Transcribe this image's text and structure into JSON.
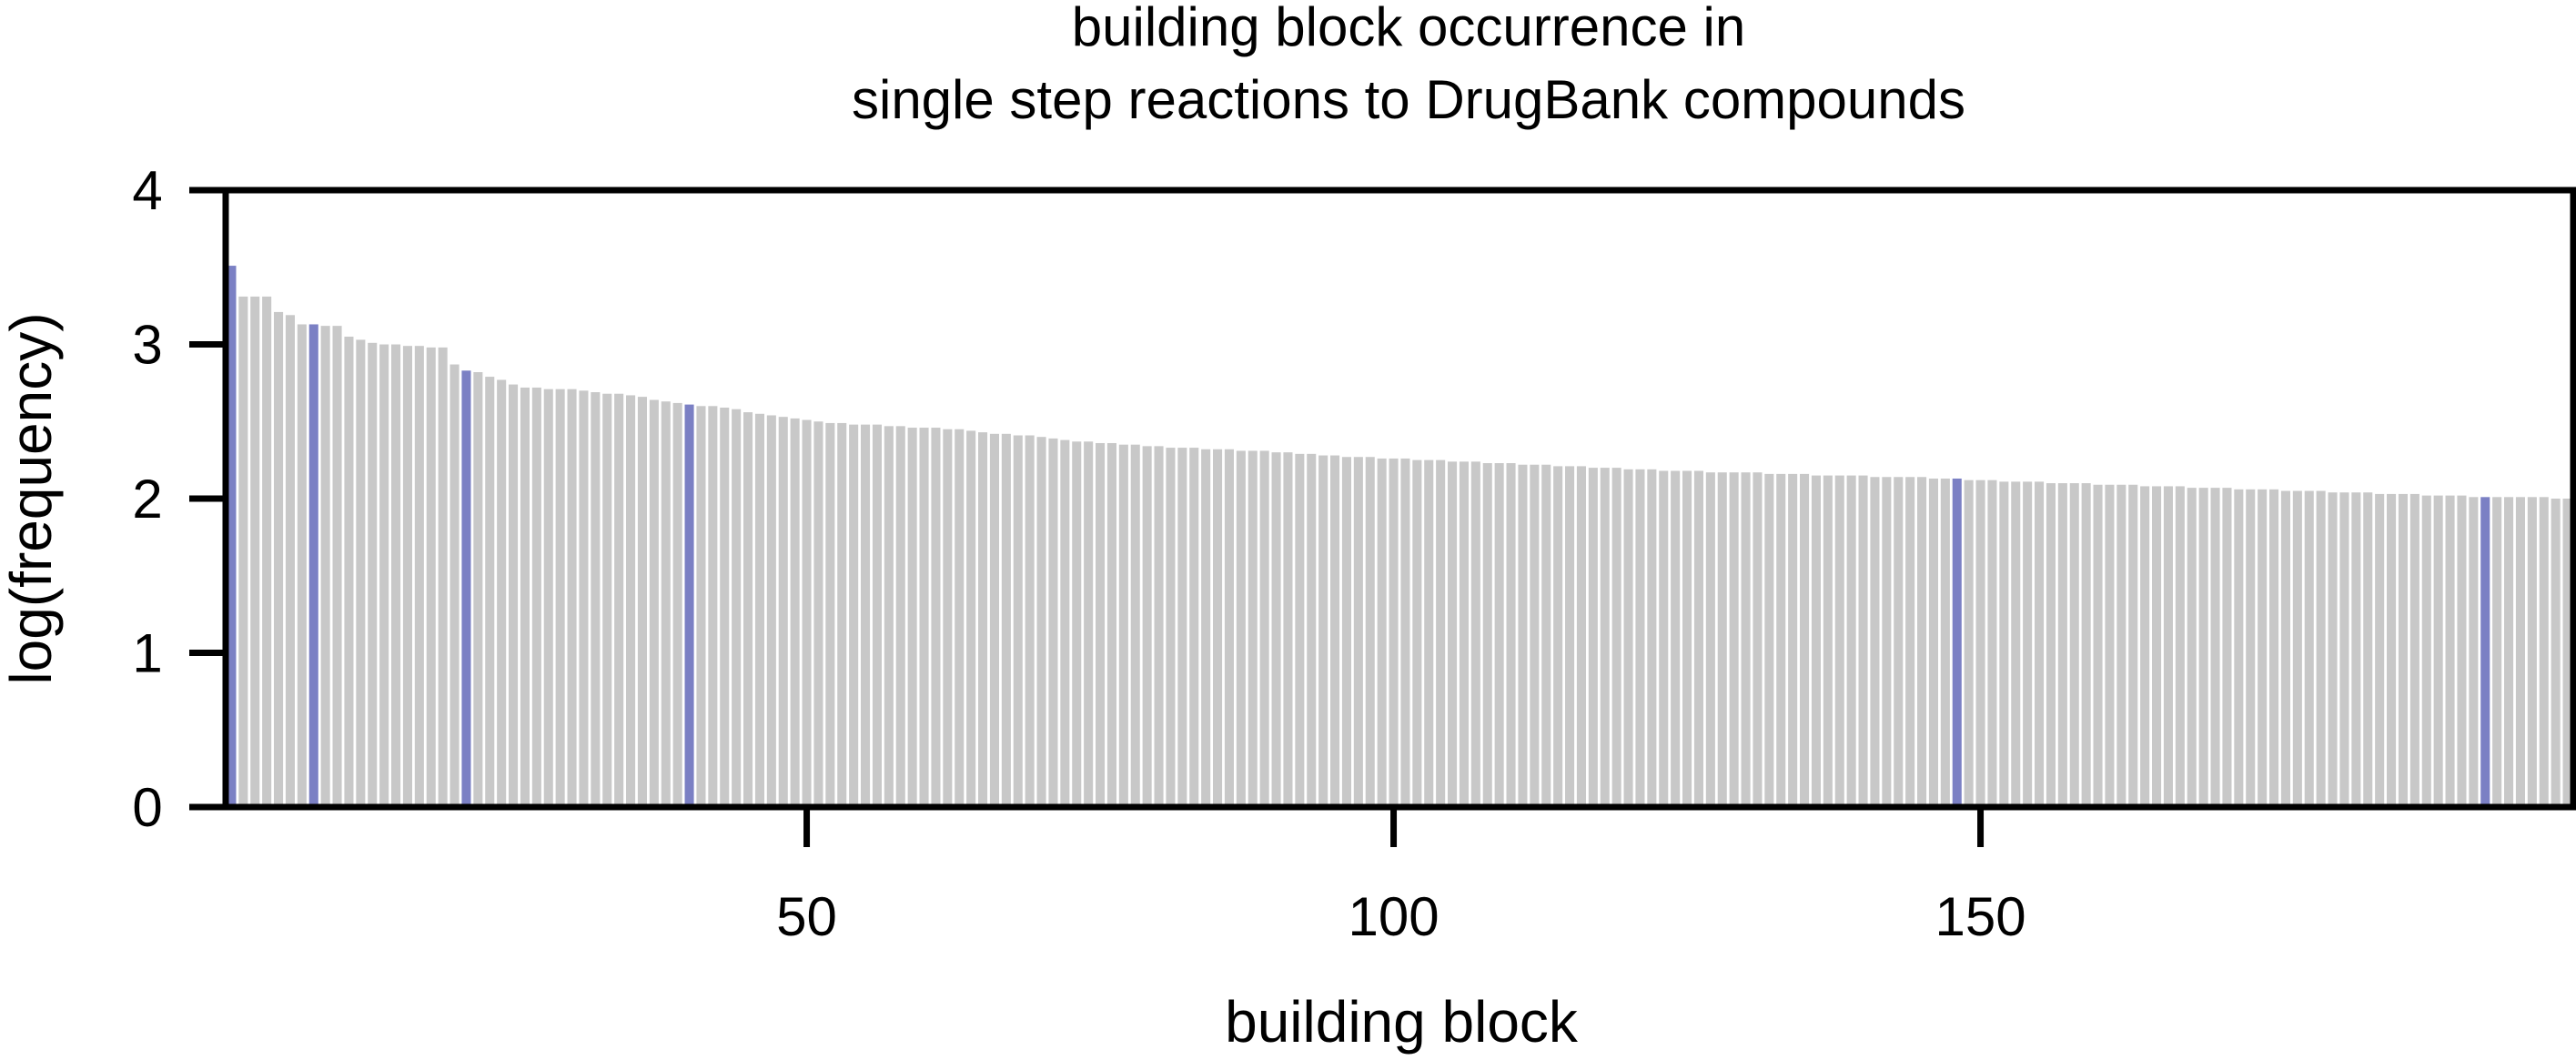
{
  "chart_data": {
    "type": "bar",
    "title": [
      "building block occurrence in",
      "single step reactions to DrugBank compounds"
    ],
    "xlabel": "building block",
    "ylabel": "log(frequency)",
    "xlim": [
      0.5,
      200.5
    ],
    "ylim": [
      0,
      4
    ],
    "x_ticks": [
      50,
      100,
      150
    ],
    "y_ticks": [
      0,
      1,
      2,
      3,
      4
    ],
    "grid": false,
    "legend": "none",
    "bar_color": "#c8c8c8",
    "highlight_color": "#7b80c4",
    "highlighted_blocks": [
      1,
      8,
      21,
      40,
      148,
      193
    ],
    "values": [
      3.51,
      3.31,
      3.31,
      3.31,
      3.21,
      3.19,
      3.13,
      3.13,
      3.12,
      3.12,
      3.05,
      3.03,
      3.01,
      3.0,
      3.0,
      2.99,
      2.99,
      2.98,
      2.98,
      2.87,
      2.83,
      2.82,
      2.79,
      2.77,
      2.74,
      2.72,
      2.72,
      2.71,
      2.71,
      2.71,
      2.7,
      2.69,
      2.68,
      2.68,
      2.67,
      2.66,
      2.64,
      2.63,
      2.62,
      2.61,
      2.6,
      2.6,
      2.59,
      2.58,
      2.56,
      2.55,
      2.54,
      2.53,
      2.52,
      2.51,
      2.5,
      2.49,
      2.49,
      2.48,
      2.48,
      2.48,
      2.47,
      2.47,
      2.46,
      2.46,
      2.46,
      2.45,
      2.45,
      2.44,
      2.43,
      2.42,
      2.42,
      2.41,
      2.41,
      2.4,
      2.39,
      2.38,
      2.37,
      2.37,
      2.36,
      2.36,
      2.35,
      2.35,
      2.34,
      2.34,
      2.33,
      2.33,
      2.33,
      2.32,
      2.32,
      2.32,
      2.31,
      2.31,
      2.31,
      2.3,
      2.3,
      2.29,
      2.29,
      2.28,
      2.28,
      2.27,
      2.27,
      2.27,
      2.26,
      2.26,
      2.26,
      2.25,
      2.25,
      2.25,
      2.24,
      2.24,
      2.24,
      2.23,
      2.23,
      2.23,
      2.22,
      2.22,
      2.22,
      2.21,
      2.21,
      2.21,
      2.2,
      2.2,
      2.2,
      2.19,
      2.19,
      2.19,
      2.18,
      2.18,
      2.18,
      2.18,
      2.17,
      2.17,
      2.17,
      2.17,
      2.17,
      2.16,
      2.16,
      2.16,
      2.16,
      2.15,
      2.15,
      2.15,
      2.15,
      2.15,
      2.14,
      2.14,
      2.14,
      2.14,
      2.14,
      2.13,
      2.13,
      2.13,
      2.12,
      2.12,
      2.12,
      2.11,
      2.11,
      2.11,
      2.11,
      2.1,
      2.1,
      2.1,
      2.1,
      2.09,
      2.09,
      2.09,
      2.09,
      2.08,
      2.08,
      2.08,
      2.08,
      2.07,
      2.07,
      2.07,
      2.07,
      2.06,
      2.06,
      2.06,
      2.06,
      2.05,
      2.05,
      2.05,
      2.05,
      2.04,
      2.04,
      2.04,
      2.04,
      2.03,
      2.03,
      2.03,
      2.03,
      2.02,
      2.02,
      2.02,
      2.02,
      2.01,
      2.01,
      2.01,
      2.01,
      2.01,
      2.01,
      2.01,
      2.0,
      2.0,
      2.0,
      2.0,
      2.0,
      2.0,
      2.0,
      2.0
    ]
  }
}
